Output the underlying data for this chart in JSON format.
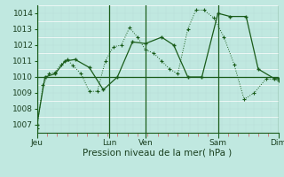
{
  "bg_color": "#c0e8e0",
  "line_color": "#1a5c1a",
  "ylabel": "Pression niveau de la mer( hPa )",
  "ylim": [
    1006.5,
    1014.5
  ],
  "yticks": [
    1007,
    1008,
    1009,
    1010,
    1011,
    1012,
    1013,
    1014
  ],
  "xlim": [
    0,
    240
  ],
  "day_positions": [
    0,
    72,
    108,
    180,
    240
  ],
  "xtick_labels_pos": [
    0,
    72,
    108,
    180,
    240
  ],
  "xtick_labels": [
    "Jeu",
    "Lun",
    "Ven",
    "Sam",
    "Dim"
  ],
  "series1_x": [
    0,
    6,
    12,
    18,
    24,
    30,
    36,
    44,
    52,
    60,
    68,
    76,
    84,
    92,
    100,
    108,
    116,
    124,
    132,
    140,
    150,
    158,
    166,
    176,
    186,
    196,
    206,
    216,
    228,
    240
  ],
  "series1_y": [
    1006.8,
    1009.5,
    1010.2,
    1010.3,
    1010.8,
    1011.1,
    1010.7,
    1010.2,
    1009.1,
    1009.1,
    1011.0,
    1011.9,
    1012.0,
    1013.1,
    1012.5,
    1011.7,
    1011.5,
    1011.0,
    1010.5,
    1010.2,
    1013.0,
    1014.2,
    1014.2,
    1013.7,
    1012.5,
    1010.8,
    1008.6,
    1009.0,
    1009.9,
    1009.8
  ],
  "series2_x": [
    0,
    8,
    18,
    28,
    38,
    52,
    66,
    80,
    95,
    108,
    124,
    136,
    150,
    164,
    180,
    192,
    208,
    220,
    236,
    240
  ],
  "series2_y": [
    1007.0,
    1010.0,
    1010.2,
    1011.0,
    1011.1,
    1010.6,
    1009.2,
    1010.0,
    1012.2,
    1012.1,
    1012.5,
    1012.0,
    1010.0,
    1010.0,
    1014.0,
    1013.8,
    1013.8,
    1010.5,
    1009.9,
    1009.9
  ],
  "series3_x": [
    0,
    240
  ],
  "series3_y": [
    1010.0,
    1010.0
  ],
  "tick_fontsize": 6.5,
  "xlabel_fontsize": 7.5
}
